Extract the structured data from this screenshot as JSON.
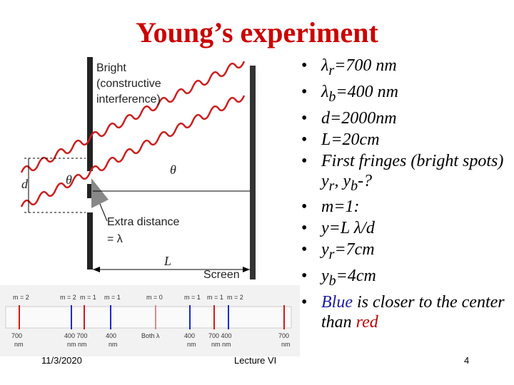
{
  "slide": {
    "title": "Young’s experiment",
    "footer_date": "11/3/2020",
    "footer_center": "Lecture VI",
    "page_number": "4"
  },
  "diagram": {
    "bright_label_1": "Bright",
    "bright_label_2": "(constructive",
    "bright_label_3": "interference)",
    "theta": "θ",
    "d_label": "d",
    "extra_distance": "Extra distance",
    "equals_lambda": "= λ",
    "L_label": "L",
    "screen_label": "Screen"
  },
  "spectrum": {
    "top_labels": [
      "m = 2",
      "m = 2",
      "m = 1",
      "m = 1",
      "m = 0",
      "m = 1",
      "m = 1",
      "m = 2"
    ],
    "bottom_labels": [
      {
        "a": "700",
        "b": "nm"
      },
      {
        "a": "400 700",
        "b": "nm nm"
      },
      {
        "a": "400",
        "b": "nm"
      },
      {
        "a": "Both λ",
        "b": ""
      },
      {
        "a": "400",
        "b": "nm"
      },
      {
        "a": "700 400",
        "b": "nm nm"
      },
      {
        "a": "700",
        "b": "nm"
      }
    ],
    "line_colors": {
      "red": "#d11a1a",
      "blue": "#1a2ad1",
      "center": "#e08a8a"
    }
  },
  "bullets": {
    "b1_sym": "λ",
    "b1_sub": "r",
    "b1_rest": "=700 nm",
    "b2_sym": "λ",
    "b2_sub": "b",
    "b2_rest": "=400 nm",
    "b3": "d=2000nm",
    "b4": "L=20cm",
    "b5_a": "First fringes (bright spots) y",
    "b5_r": "r",
    "b5_mid": ", y",
    "b5_b": "b",
    "b5_end": "-?",
    "b6": "m=1:",
    "b7_a": "y=L ",
    "b7_sym": "λ",
    "b7_b": "/d",
    "b8_a": "y",
    "b8_sub": "r",
    "b8_rest": "=7cm",
    "b9_a": "y",
    "b9_sub": "b",
    "b9_rest": "=4cm",
    "b10_blue": "Blue",
    "b10_mid": " is closer to the center than ",
    "b10_red": "red"
  }
}
